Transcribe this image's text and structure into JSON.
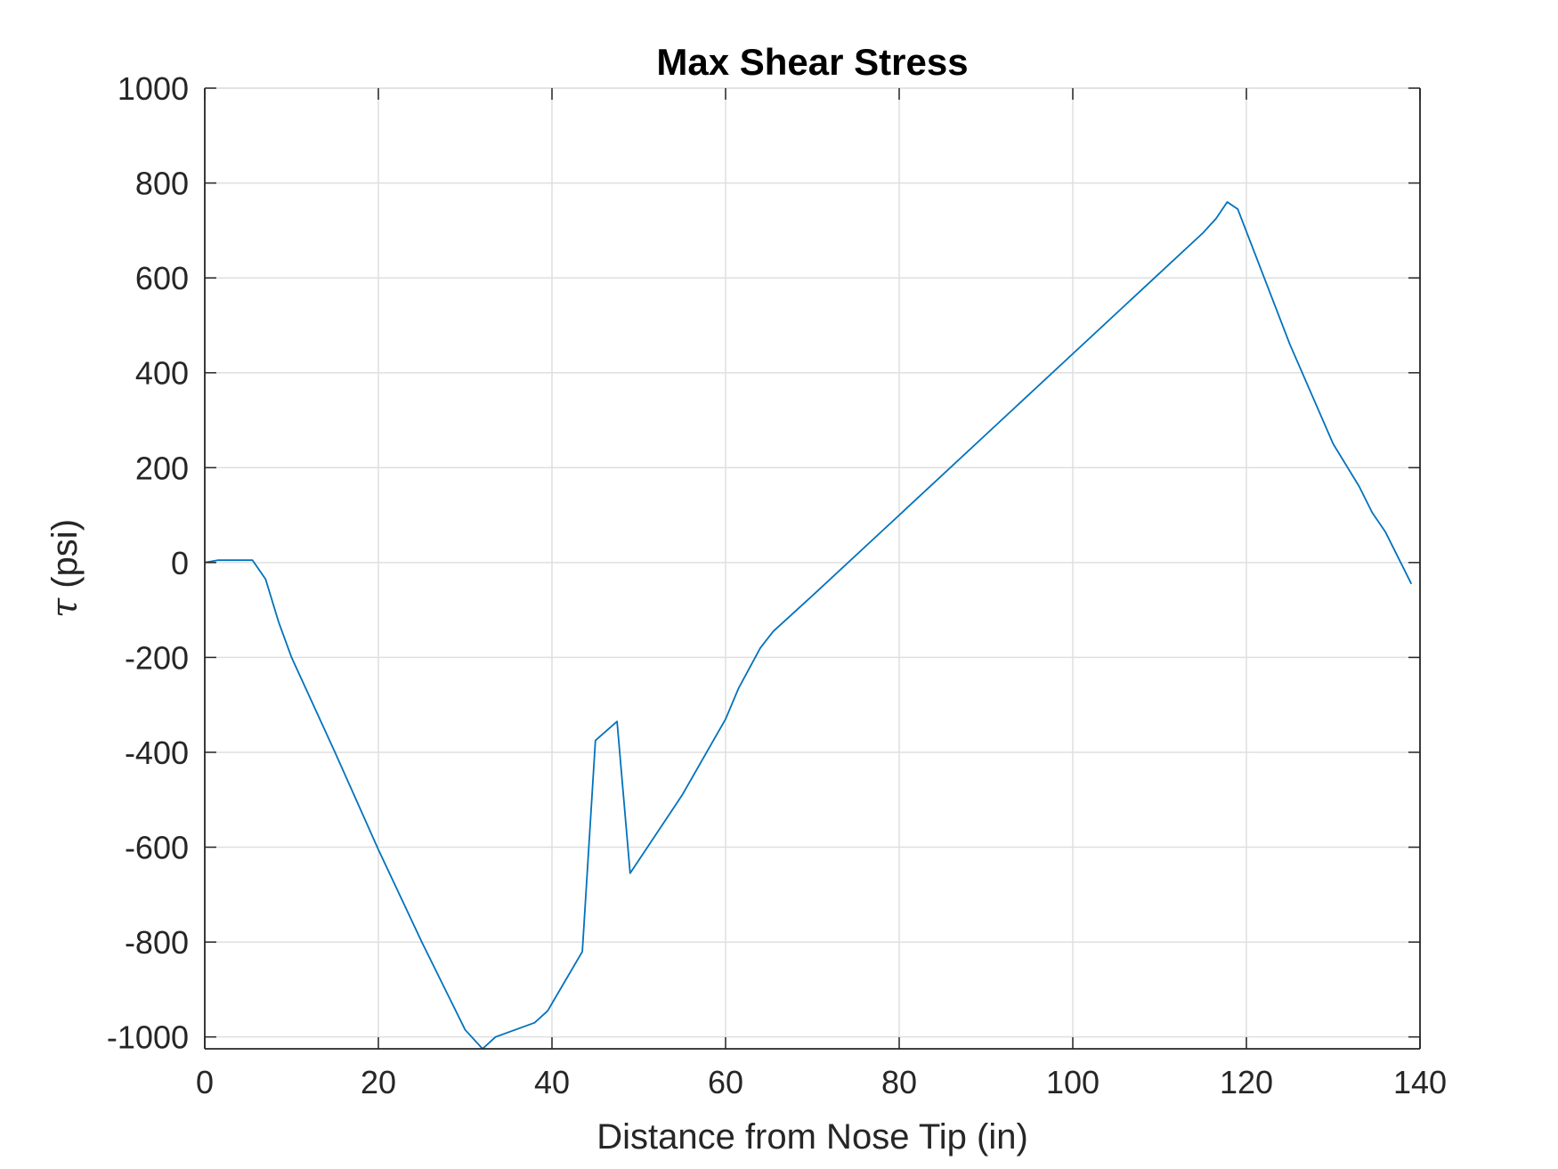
{
  "chart_data": {
    "type": "line",
    "title": "Max Shear Stress",
    "xlabel": "Distance from Nose Tip (in)",
    "ylabel_symbol": "τ",
    "ylabel_unit": " (psi)",
    "xlim": [
      0,
      140
    ],
    "ylim": [
      -1025,
      1000
    ],
    "xticks": [
      0,
      20,
      40,
      60,
      80,
      100,
      120,
      140
    ],
    "xtick_labels": [
      "0",
      "20",
      "40",
      "60",
      "80",
      "100",
      "120",
      "140"
    ],
    "yticks": [
      -1000,
      -800,
      -600,
      -400,
      -200,
      0,
      200,
      400,
      600,
      800,
      1000
    ],
    "ytick_labels": [
      "-1000",
      "-800",
      "-600",
      "-400",
      "-200",
      "0",
      "200",
      "400",
      "600",
      "800",
      "1000"
    ],
    "grid": true,
    "line_color": "#0072BD",
    "series": [
      {
        "x": [
          0,
          1.5,
          5.5,
          7,
          8.5,
          10,
          12,
          15,
          20,
          25,
          30,
          32,
          33.5,
          38,
          39.5,
          43.5,
          45,
          47.5,
          49,
          55,
          60,
          61.5,
          64,
          65.5,
          70,
          80,
          90,
          100,
          110,
          115,
          116.5,
          117.8,
          119,
          125,
          130,
          133,
          134.5,
          136,
          139
        ],
        "y": [
          0,
          5,
          5,
          -35,
          -125,
          -200,
          -280,
          -400,
          -605,
          -800,
          -985,
          -1025,
          -1000,
          -970,
          -945,
          -820,
          -375,
          -335,
          -655,
          -490,
          -330,
          -265,
          -180,
          -145,
          -70,
          100,
          270,
          440,
          610,
          695,
          725,
          760,
          745,
          460,
          250,
          160,
          105,
          65,
          -45
        ]
      }
    ]
  }
}
